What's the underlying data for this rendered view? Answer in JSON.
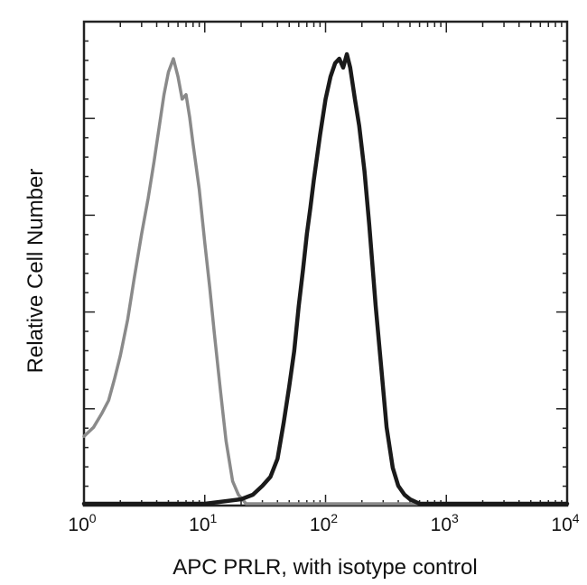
{
  "chart_data": {
    "type": "line",
    "xlabel": "APC PRLR, with isotype control",
    "ylabel": "Relative Cell Number",
    "xscale": "log",
    "xlim": [
      1,
      10000
    ],
    "ylim": [
      0,
      1
    ],
    "x_tick_labels": [
      {
        "value": 1,
        "base": "10",
        "exp": "0"
      },
      {
        "value": 10,
        "base": "10",
        "exp": "1"
      },
      {
        "value": 100,
        "base": "10",
        "exp": "2"
      },
      {
        "value": 1000,
        "base": "10",
        "exp": "3"
      },
      {
        "value": 10000,
        "base": "10",
        "exp": "4"
      }
    ],
    "grid": false,
    "legend": "none",
    "series": [
      {
        "color": "#8a8a8a",
        "x": [
          1.0,
          1.2,
          1.4,
          1.6,
          1.8,
          2.0,
          2.3,
          2.6,
          3.0,
          3.4,
          3.8,
          4.2,
          4.6,
          5.0,
          5.5,
          6.0,
          6.5,
          7.0,
          7.5,
          8.0,
          9.0,
          10.0,
          11.0,
          12.0,
          13.5,
          15.0,
          17.0,
          19.0,
          22.0,
          28.0,
          40.0,
          100.0,
          10000.0
        ],
        "y": [
          0.15,
          0.17,
          0.2,
          0.23,
          0.28,
          0.33,
          0.41,
          0.5,
          0.6,
          0.68,
          0.76,
          0.84,
          0.91,
          0.96,
          0.99,
          0.95,
          0.9,
          0.91,
          0.86,
          0.8,
          0.7,
          0.58,
          0.48,
          0.38,
          0.25,
          0.14,
          0.05,
          0.02,
          0.0,
          0.0,
          0.0,
          0.0,
          0.0
        ]
      },
      {
        "color": "#1a1a1a",
        "x": [
          1.0,
          10.0,
          20.0,
          25.0,
          30.0,
          35.0,
          40.0,
          45.0,
          50.0,
          55.0,
          60.0,
          65.0,
          70.0,
          75.0,
          80.0,
          90.0,
          100.0,
          110.0,
          120.0,
          130.0,
          140.0,
          150.0,
          160.0,
          175.0,
          190.0,
          210.0,
          230.0,
          260.0,
          290.0,
          320.0,
          360.0,
          400.0,
          450.0,
          500.0,
          600.0,
          10000.0
        ],
        "y": [
          0.0,
          0.0,
          0.01,
          0.02,
          0.04,
          0.06,
          0.1,
          0.18,
          0.26,
          0.34,
          0.44,
          0.52,
          0.6,
          0.66,
          0.72,
          0.82,
          0.9,
          0.95,
          0.98,
          0.99,
          0.97,
          1.0,
          0.97,
          0.9,
          0.84,
          0.74,
          0.62,
          0.44,
          0.3,
          0.17,
          0.08,
          0.04,
          0.02,
          0.01,
          0.0,
          0.0
        ]
      }
    ]
  }
}
